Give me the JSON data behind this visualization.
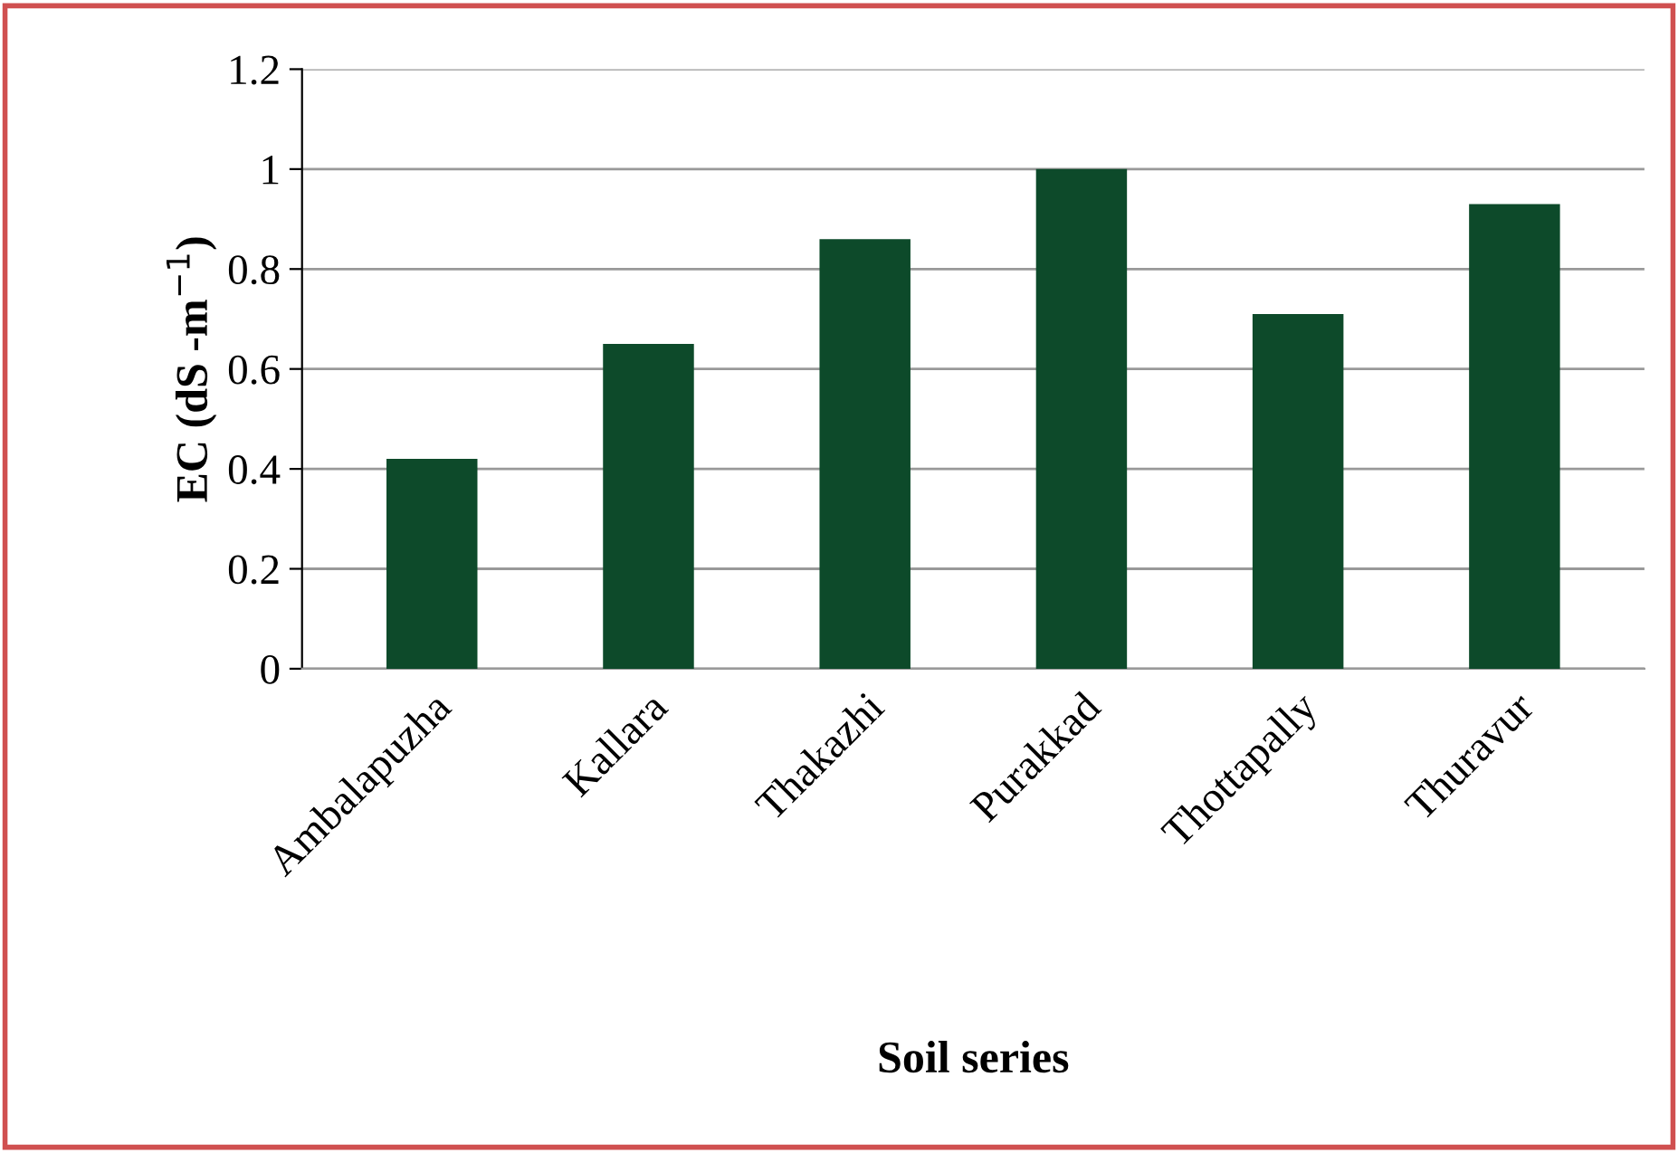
{
  "chart_data": {
    "type": "bar",
    "xlabel": "Soil series",
    "ylabel": "EC (dS -m$^{−1}$)",
    "categories": [
      "Ambalapuzha",
      "Kallara",
      "Thakazhi",
      "Purakkad",
      "Thottapally",
      "Thuravur"
    ],
    "values": [
      0.42,
      0.65,
      0.86,
      1.0,
      0.71,
      0.93
    ],
    "color": "#0d4a2a",
    "ylim": [
      0,
      1.2
    ],
    "yticks": [
      0,
      0.2,
      0.4,
      0.6,
      0.8,
      1,
      1.2
    ],
    "grid": "y"
  }
}
